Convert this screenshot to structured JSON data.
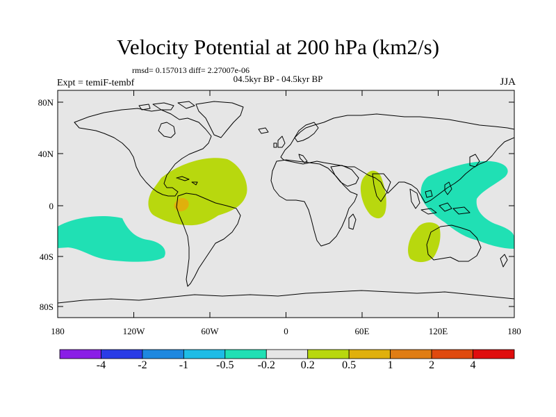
{
  "title": "Velocity Potential at 200 hPa (km2/s)",
  "stats": "rmsd= 0.157013  diff= 2.27007e-06",
  "subtitle": "04.5kyr BP - 04.5kyr BP",
  "experiment": "Expt = temiF-tembf",
  "season": "JJA",
  "y_ticks": [
    "80N",
    "40N",
    "0",
    "40S",
    "80S"
  ],
  "x_ticks": [
    "180",
    "120W",
    "60W",
    "0",
    "60E",
    "120E",
    "180"
  ],
  "colorbar": {
    "colors": [
      "#8a1ee6",
      "#2a3ce6",
      "#1e88e0",
      "#1ebce6",
      "#20e0b4",
      "#e6e6e6",
      "#b8d80e",
      "#e0b00c",
      "#e07d14",
      "#e04a0e",
      "#e00e0e"
    ],
    "labels": [
      "-4",
      "-2",
      "-1",
      "-0.5",
      "-0.2",
      "0.2",
      "0.5",
      "1",
      "2",
      "4"
    ]
  },
  "regions": [
    {
      "name": "central-america-positive",
      "level": "0.2-0.5"
    },
    {
      "name": "colombia-positive",
      "level": "0.5-1"
    },
    {
      "name": "east-africa-positive",
      "level": "0.2-0.5"
    },
    {
      "name": "australia-positive",
      "level": "0.2-0.5"
    },
    {
      "name": "south-pacific-negative",
      "level": "-0.5--0.2"
    },
    {
      "name": "west-pacific-negative",
      "level": "-0.5--0.2"
    }
  ],
  "map_colors": {
    "background": "#e6e6e6",
    "coast": "#000000"
  }
}
